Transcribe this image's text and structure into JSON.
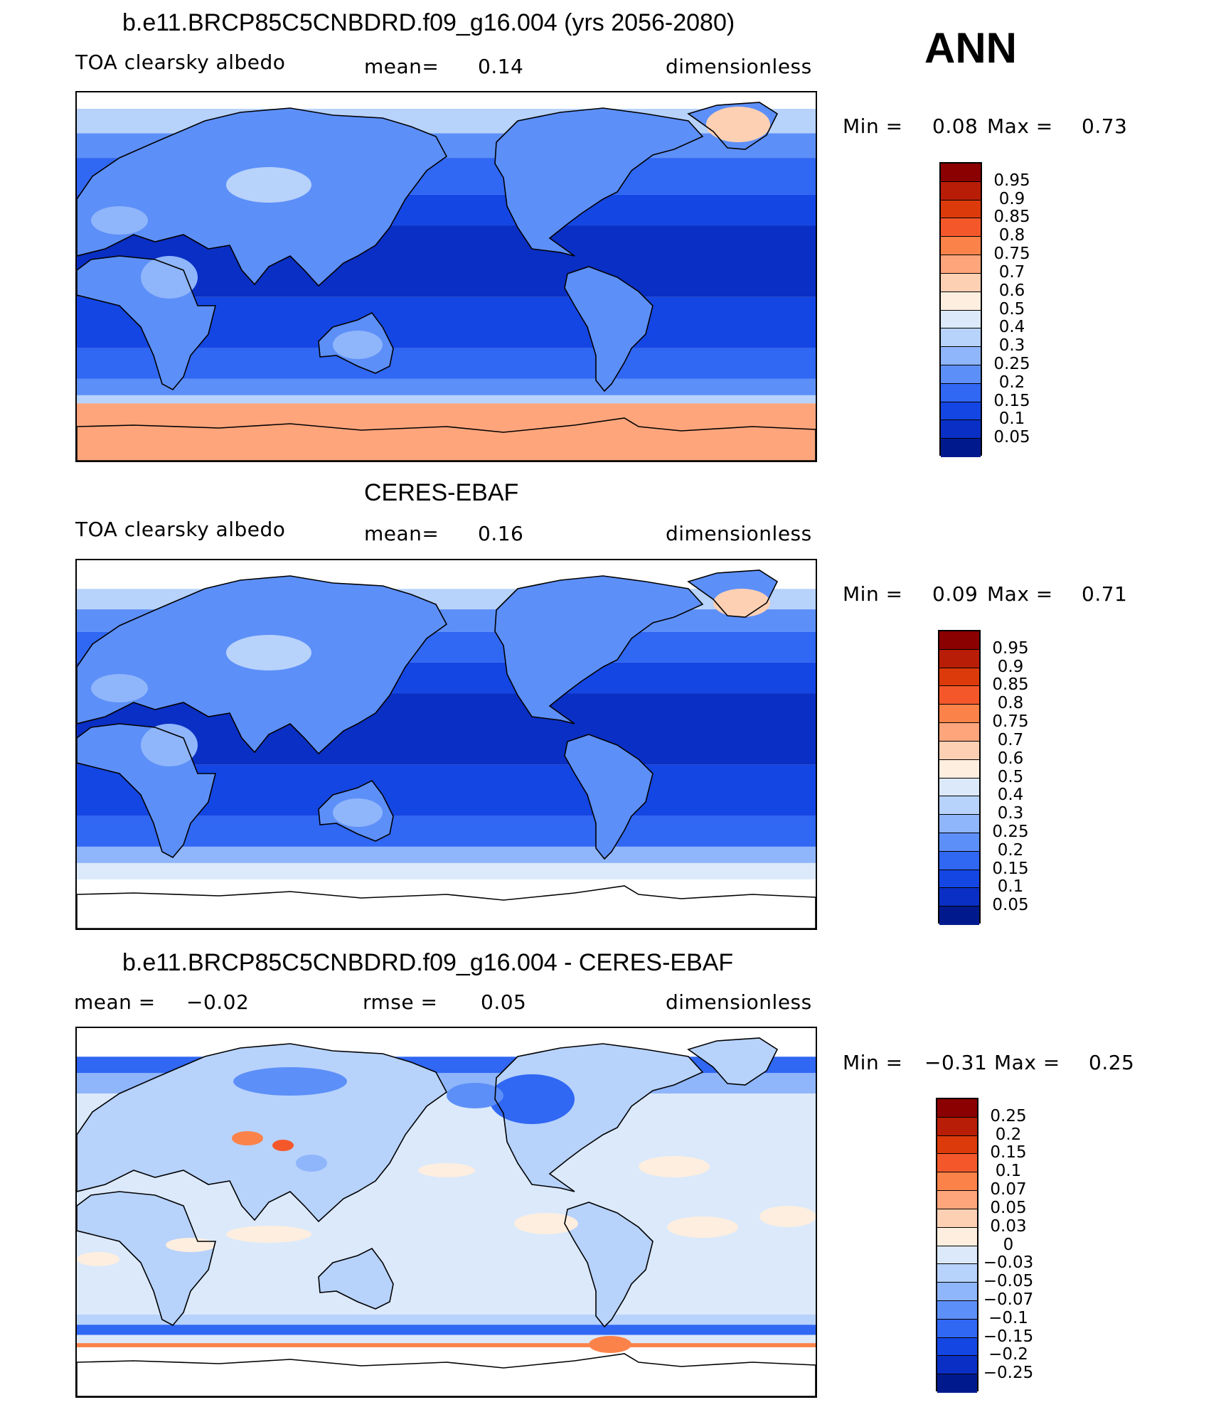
{
  "season": "ANN",
  "panels": [
    {
      "title": "b.e11.BRCP85C5CNBDRD.f09_g16.004 (yrs 2056-2080)",
      "left_label": "TOA clearsky albedo",
      "stat1_label": "mean=",
      "stat1_value": "0.14",
      "units": "dimensionless",
      "min_label": "Min =",
      "min_value": "0.08",
      "max_label": "Max =",
      "max_value": "0.73",
      "levels": [
        "0.95",
        "0.9",
        "0.85",
        "0.8",
        "0.75",
        "0.7",
        "0.6",
        "0.5",
        "0.4",
        "0.3",
        "0.25",
        "0.2",
        "0.15",
        "0.1",
        "0.05"
      ],
      "colors": [
        "#8b0000",
        "#b81d07",
        "#dc3a0b",
        "#f4582a",
        "#fb8249",
        "#fea57c",
        "#fdd0b4",
        "#fdeedf",
        "#dbe9fb",
        "#b7d2fb",
        "#8fb5fb",
        "#5d8ff8",
        "#3067f3",
        "#1446e3",
        "#0a2fc4",
        "#001a8e"
      ],
      "map_scheme": "model"
    },
    {
      "title": "CERES-EBAF",
      "left_label": "TOA clearsky albedo",
      "stat1_label": "mean=",
      "stat1_value": "0.16",
      "units": "dimensionless",
      "min_label": "Min =",
      "min_value": "0.09",
      "max_label": "Max =",
      "max_value": "0.71",
      "levels": [
        "0.95",
        "0.9",
        "0.85",
        "0.8",
        "0.75",
        "0.7",
        "0.6",
        "0.5",
        "0.4",
        "0.3",
        "0.25",
        "0.2",
        "0.15",
        "0.1",
        "0.05"
      ],
      "colors": [
        "#8b0000",
        "#b81d07",
        "#dc3a0b",
        "#f4582a",
        "#fb8249",
        "#fea57c",
        "#fdd0b4",
        "#fdeedf",
        "#dbe9fb",
        "#b7d2fb",
        "#8fb5fb",
        "#5d8ff8",
        "#3067f3",
        "#1446e3",
        "#0a2fc4",
        "#001a8e"
      ],
      "map_scheme": "obs"
    },
    {
      "title": "b.e11.BRCP85C5CNBDRD.f09_g16.004 - CERES-EBAF",
      "left_label": "mean =",
      "left_value": "−0.02",
      "stat1_label": "rmse =",
      "stat1_value": "0.05",
      "units": "dimensionless",
      "min_label": "Min =",
      "min_value": "−0.31",
      "max_label": "Max =",
      "max_value": "0.25",
      "levels": [
        "0.25",
        "0.2",
        "0.15",
        "0.1",
        "0.07",
        "0.05",
        "0.03",
        "0",
        "−0.03",
        "−0.05",
        "−0.07",
        "−0.1",
        "−0.15",
        "−0.2",
        "−0.25"
      ],
      "colors": [
        "#8b0000",
        "#b81d07",
        "#dc3a0b",
        "#f4582a",
        "#fb8249",
        "#fea57c",
        "#fdd0b4",
        "#fdeedf",
        "#dbe9fb",
        "#b7d2fb",
        "#8fb5fb",
        "#5d8ff8",
        "#3067f3",
        "#1446e3",
        "#0a2fc4",
        "#001a8e"
      ],
      "map_scheme": "diff"
    }
  ]
}
